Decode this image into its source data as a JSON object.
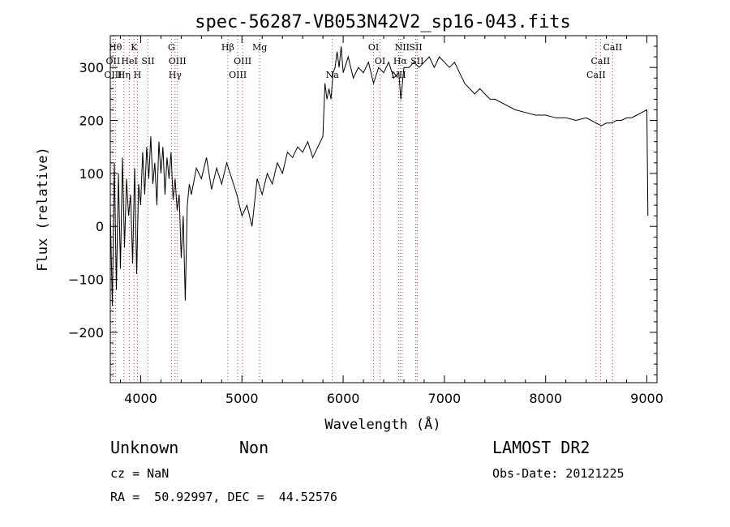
{
  "chart_data": {
    "type": "line",
    "title": "spec-56287-VB053N42V2_sp16-043.fits",
    "xlabel": "Wavelength (Å)",
    "ylabel": "Flux (relative)",
    "xlim": [
      3700,
      9100
    ],
    "ylim": [
      -295,
      360
    ],
    "xticks": [
      4000,
      5000,
      6000,
      7000,
      8000,
      9000
    ],
    "yticks": [
      -200,
      -100,
      0,
      100,
      200,
      300
    ],
    "grid": false,
    "series": [
      {
        "x": [
          3700,
          3720,
          3740,
          3760,
          3780,
          3800,
          3820,
          3840,
          3860,
          3880,
          3900,
          3920,
          3940,
          3960,
          3980,
          4000,
          4020,
          4040,
          4060,
          4080,
          4100,
          4120,
          4140,
          4160,
          4180,
          4200,
          4220,
          4240,
          4260,
          4280,
          4300,
          4320,
          4340,
          4360,
          4380,
          4400,
          4420,
          4440,
          4460,
          4480,
          4500,
          4550,
          4600,
          4650,
          4700,
          4750,
          4800,
          4850,
          4900,
          4950,
          5000,
          5050,
          5100,
          5150,
          5200,
          5250,
          5300,
          5350,
          5400,
          5450,
          5500,
          5550,
          5600,
          5650,
          5700,
          5750,
          5800,
          5820,
          5840,
          5860,
          5880,
          5900,
          5920,
          5940,
          5960,
          5980,
          6000,
          6050,
          6100,
          6150,
          6200,
          6250,
          6300,
          6350,
          6400,
          6450,
          6500,
          6550,
          6570,
          6600,
          6650,
          6700,
          6750,
          6800,
          6850,
          6900,
          6950,
          7000,
          7050,
          7100,
          7150,
          7200,
          7250,
          7300,
          7350,
          7400,
          7450,
          7500,
          7600,
          7700,
          7800,
          7900,
          8000,
          8100,
          8200,
          8300,
          8400,
          8500,
          8550,
          8600,
          8650,
          8700,
          8750,
          8800,
          8850,
          8900,
          8950,
          9000,
          9010
        ],
        "y": [
          30,
          -150,
          120,
          -120,
          100,
          -80,
          130,
          -40,
          90,
          20,
          60,
          -70,
          110,
          -90,
          80,
          40,
          140,
          60,
          150,
          90,
          170,
          80,
          120,
          40,
          160,
          100,
          150,
          60,
          130,
          90,
          140,
          50,
          90,
          30,
          60,
          -60,
          20,
          -140,
          40,
          80,
          60,
          110,
          90,
          130,
          70,
          110,
          80,
          120,
          90,
          60,
          20,
          40,
          0,
          90,
          60,
          100,
          80,
          120,
          100,
          140,
          130,
          150,
          140,
          160,
          130,
          150,
          170,
          270,
          240,
          260,
          240,
          290,
          300,
          330,
          300,
          340,
          290,
          320,
          280,
          300,
          290,
          310,
          270,
          300,
          290,
          310,
          280,
          290,
          240,
          300,
          300,
          310,
          300,
          310,
          320,
          300,
          320,
          310,
          300,
          310,
          290,
          270,
          260,
          250,
          260,
          250,
          240,
          240,
          230,
          220,
          215,
          210,
          210,
          205,
          205,
          200,
          205,
          195,
          190,
          195,
          195,
          200,
          200,
          205,
          205,
          210,
          215,
          220,
          20
        ]
      }
    ],
    "line_markers": [
      {
        "label": "Hθ",
        "x": 3750,
        "row": 0
      },
      {
        "label": "K",
        "x": 3934,
        "row": 0
      },
      {
        "label": "G",
        "x": 4304,
        "row": 0
      },
      {
        "label": "Hβ",
        "x": 4861,
        "row": 0
      },
      {
        "label": "Mg",
        "x": 5175,
        "row": 0
      },
      {
        "label": "OI",
        "x": 6300,
        "row": 0
      },
      {
        "label": "NII",
        "x": 6583,
        "row": 0
      },
      {
        "label": "SII",
        "x": 6717,
        "row": 0
      },
      {
        "label": "CaII",
        "x": 8662,
        "row": 0
      },
      {
        "label": "OII",
        "x": 3727,
        "row": 1
      },
      {
        "label": "HeI",
        "x": 3889,
        "row": 1
      },
      {
        "label": "SII",
        "x": 4072,
        "row": 1
      },
      {
        "label": "OIII",
        "x": 4363,
        "row": 1
      },
      {
        "label": "OIII",
        "x": 5007,
        "row": 1
      },
      {
        "label": "OI",
        "x": 6364,
        "row": 1
      },
      {
        "label": "Hα",
        "x": 6563,
        "row": 1
      },
      {
        "label": "SII",
        "x": 6731,
        "row": 1
      },
      {
        "label": "CaII",
        "x": 8542,
        "row": 1
      },
      {
        "label": "OIII",
        "x": 3727,
        "row": 2
      },
      {
        "label": "Hη",
        "x": 3835,
        "row": 2
      },
      {
        "label": "H",
        "x": 3968,
        "row": 2
      },
      {
        "label": "Hγ",
        "x": 4340,
        "row": 2
      },
      {
        "label": "OIII",
        "x": 4959,
        "row": 2
      },
      {
        "label": "Na",
        "x": 5893,
        "row": 2
      },
      {
        "label": "NII",
        "x": 6548,
        "row": 2
      },
      {
        "label": "CaII",
        "x": 8498,
        "row": 2
      }
    ]
  },
  "info": {
    "class": "Unknown",
    "subclass": "Non",
    "survey": "LAMOST DR2",
    "cz": "cz = NaN",
    "obs_date": "Obs-Date: 20121225",
    "coords": "RA =  50.92997, DEC =  44.52576"
  }
}
